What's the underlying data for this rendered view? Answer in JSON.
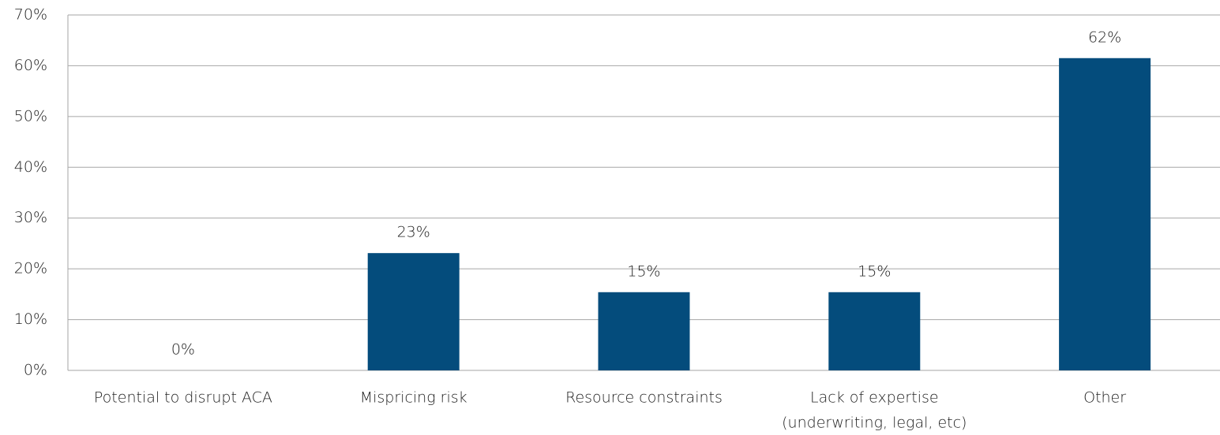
{
  "chart_data": {
    "type": "bar",
    "categories": [
      "Potential to disrupt ACA",
      "Mispricing risk",
      "Resource constraints",
      [
        "Lack of expertise",
        "(underwriting, legal, etc)"
      ],
      "Other"
    ],
    "values": [
      0,
      23.1,
      15.4,
      15.4,
      61.5
    ],
    "value_labels": [
      "0%",
      "23%",
      "15%",
      "15%",
      "62%"
    ],
    "color": "#044c7c",
    "ylim": [
      0,
      70
    ],
    "yticks": [
      {
        "value": 0,
        "label": "0%"
      },
      {
        "value": 10,
        "label": "10%"
      },
      {
        "value": 20,
        "label": "20%"
      },
      {
        "value": 30,
        "label": "30%"
      },
      {
        "value": 40,
        "label": "40%"
      },
      {
        "value": 50,
        "label": "50%"
      },
      {
        "value": 60,
        "label": "60%"
      },
      {
        "value": 70,
        "label": "70%"
      }
    ],
    "grid": true
  }
}
